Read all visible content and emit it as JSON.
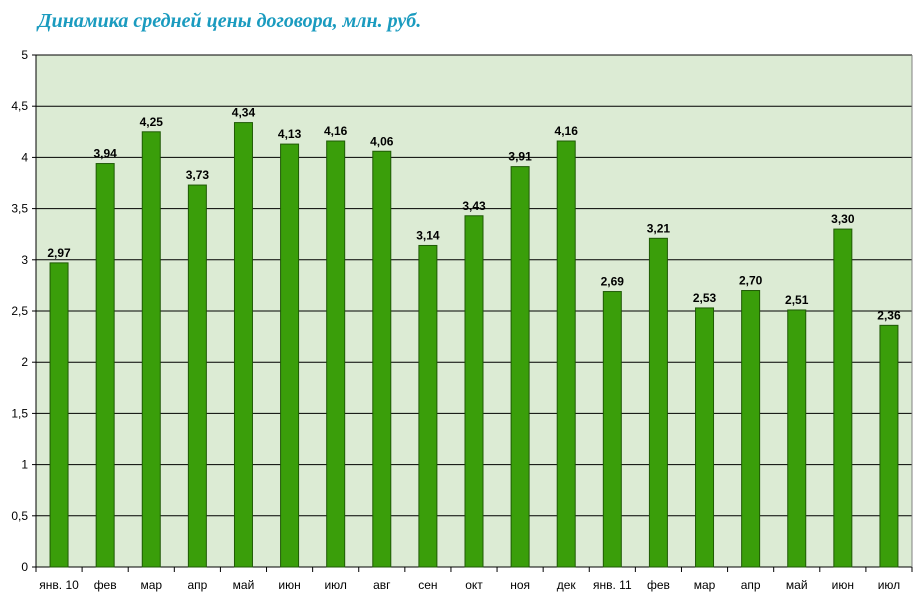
{
  "chart_data": {
    "type": "bar",
    "title": "Динамика средней цены договора, млн. руб.",
    "xlabel": "",
    "ylabel": "",
    "ylim": [
      0,
      5
    ],
    "yticks": [
      0,
      0.5,
      1,
      1.5,
      2,
      2.5,
      3,
      3.5,
      4,
      4.5,
      5
    ],
    "ytick_labels": [
      "0",
      "0,5",
      "1",
      "1,5",
      "2",
      "2,5",
      "3",
      "3,5",
      "4",
      "4,5",
      "5"
    ],
    "categories": [
      "янв. 10",
      "фев",
      "мар",
      "апр",
      "май",
      "июн",
      "июл",
      "авг",
      "сен",
      "окт",
      "ноя",
      "дек",
      "янв. 11",
      "фев",
      "мар",
      "апр",
      "май",
      "июн",
      "июл"
    ],
    "values": [
      2.97,
      3.94,
      4.25,
      3.73,
      4.34,
      4.13,
      4.16,
      4.06,
      3.14,
      3.43,
      3.91,
      4.16,
      2.69,
      3.21,
      2.53,
      2.7,
      2.51,
      3.3,
      2.36
    ],
    "data_labels": [
      "2,97",
      "3,94",
      "4,25",
      "3,73",
      "4,34",
      "4,13",
      "4,16",
      "4,06",
      "3,14",
      "3,43",
      "3,91",
      "4,16",
      "2,69",
      "3,21",
      "2,53",
      "2,70",
      "2,51",
      "3,30",
      "2,36"
    ],
    "grid": true,
    "legend": "none",
    "colors": {
      "bar": "#3a9e0a",
      "bar_border": "#1f5a05",
      "plot_background": "#dcebd4",
      "gridline": "#000000",
      "title": "#1a9bbf"
    }
  }
}
